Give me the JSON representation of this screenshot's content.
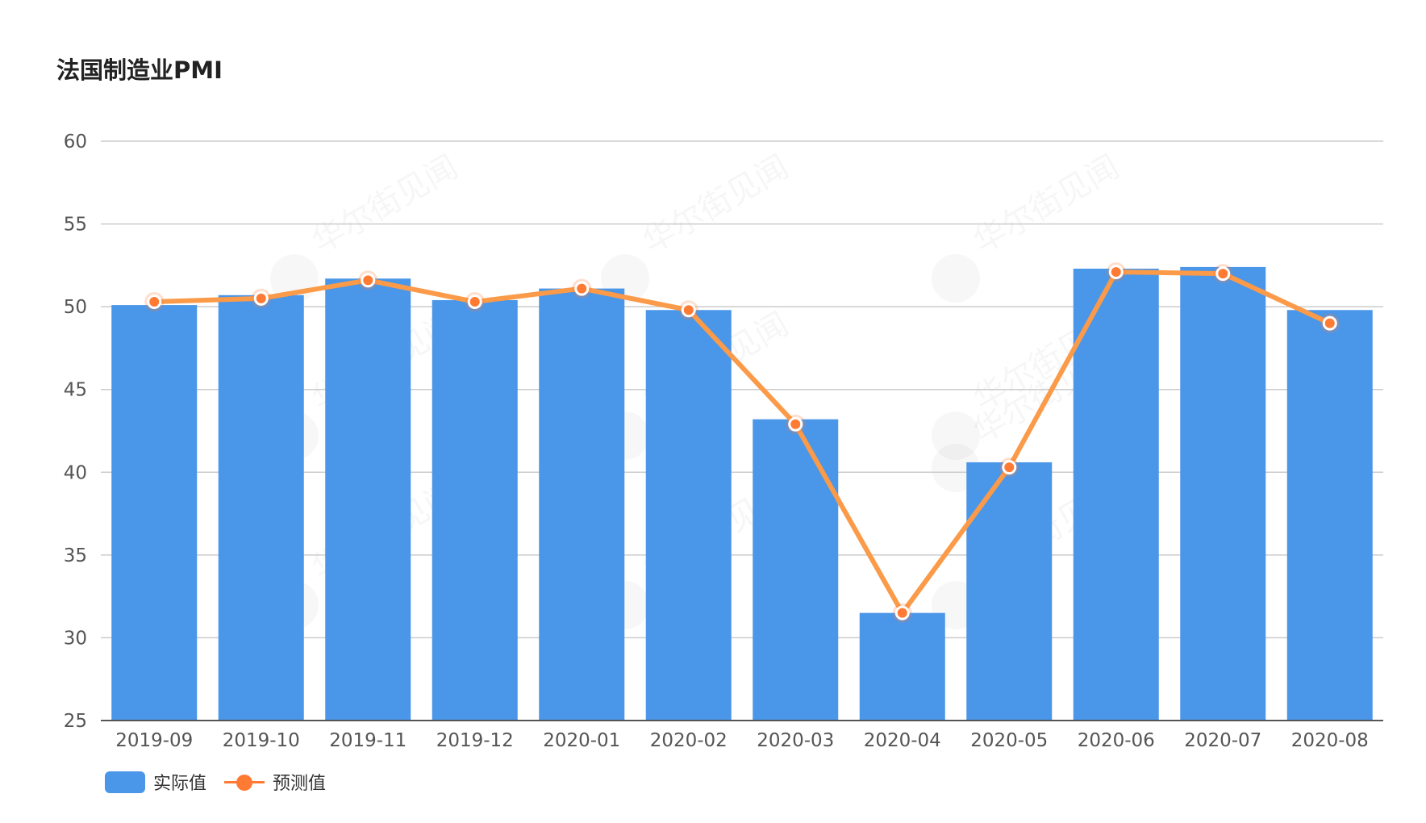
{
  "title": "法国制造业PMI",
  "watermark": "华尔街见闻",
  "colors": {
    "bar": "#4a96e8",
    "line": "#fb9a48",
    "point": "#ff7a33",
    "grid": "#cccccc",
    "axis": "#555555",
    "tick_text": "#555555"
  },
  "legend": {
    "bar_label": "实际值",
    "line_label": "预测值"
  },
  "chart_data": {
    "type": "bar",
    "categories": [
      "2019-09",
      "2019-10",
      "2019-11",
      "2019-12",
      "2020-01",
      "2020-02",
      "2020-03",
      "2020-04",
      "2020-05",
      "2020-06",
      "2020-07",
      "2020-08"
    ],
    "series": [
      {
        "name": "实际值",
        "type": "bar",
        "values": [
          50.1,
          50.7,
          51.7,
          50.4,
          51.1,
          49.8,
          43.2,
          31.5,
          40.6,
          52.3,
          52.4,
          49.8
        ]
      },
      {
        "name": "预测值",
        "type": "line",
        "values": [
          50.3,
          50.5,
          51.6,
          50.3,
          51.1,
          49.8,
          42.9,
          31.5,
          40.3,
          52.1,
          52.0,
          49.0
        ]
      }
    ],
    "ylim": [
      25,
      60
    ],
    "yticks": [
      25,
      30,
      35,
      40,
      45,
      50,
      55,
      60
    ],
    "grid": true,
    "legend_position": "bottom-left"
  }
}
